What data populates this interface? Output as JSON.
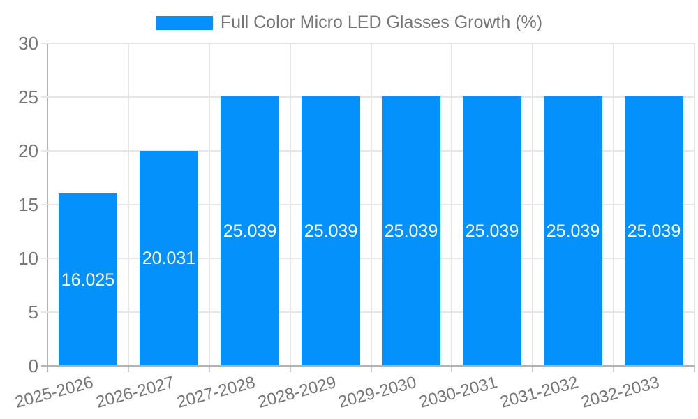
{
  "chart_data": {
    "type": "bar",
    "title": "Full Color Micro LED Glasses Growth (%)",
    "legend": {
      "position": "top",
      "label": "Full Color Micro LED Glasses Growth (%)"
    },
    "categories": [
      "2025-2026",
      "2026-2027",
      "2027-2028",
      "2028-2029",
      "2029-2030",
      "2030-2031",
      "2031-2032",
      "2032-2033"
    ],
    "values": [
      16.025,
      20.031,
      25.039,
      25.039,
      25.039,
      25.039,
      25.039,
      25.039
    ],
    "value_labels": [
      "16.025",
      "20.031",
      "25.039",
      "25.039",
      "25.039",
      "25.039",
      "25.039",
      "25.039"
    ],
    "xlabel": "",
    "ylabel": "",
    "ylim": [
      0,
      30
    ],
    "yticks": [
      0,
      5,
      10,
      15,
      20,
      25,
      30
    ],
    "ytick_labels": [
      "0",
      "5",
      "10",
      "15",
      "20",
      "25",
      "30"
    ],
    "grid": true,
    "colors": {
      "bar": "#0591fb",
      "axis_text": "#757575",
      "gridline": "#e6e6e6",
      "axis_line": "#b2b2b2",
      "tick": "#cccccc",
      "value_label_text": "#ffffff",
      "background": "#ffffff"
    }
  }
}
